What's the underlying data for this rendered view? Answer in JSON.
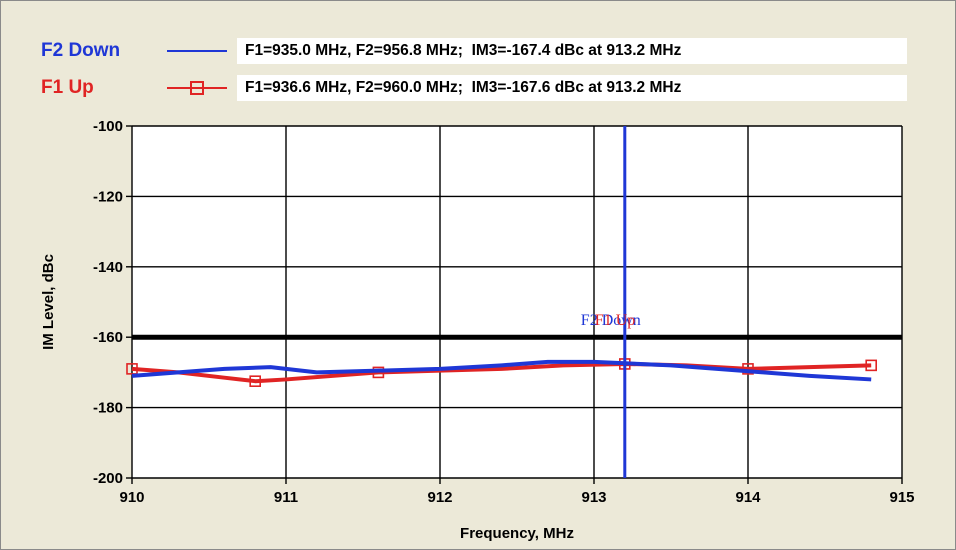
{
  "colors": {
    "f2_down": "#1f37d6",
    "f1_up": "#e02424",
    "limit": "#000000",
    "marker": "#1f37d6",
    "grid": "#000000",
    "panel_bg": "#ece9d8"
  },
  "legend": [
    {
      "name": "F2 Down",
      "text": "F1=935.0 MHz, F2=956.8 MHz;  IM3=-167.4 dBc at 913.2 MHz",
      "style": "line"
    },
    {
      "name": "F1 Up",
      "text": "F1=936.6 MHz, F2=960.0 MHz;  IM3=-167.6 dBc at 913.2 MHz",
      "style": "line-square"
    }
  ],
  "chart_data": {
    "type": "line",
    "title": "",
    "xlabel": "Frequency, MHz",
    "ylabel": "IM Level, dBc",
    "xlim": [
      910,
      915
    ],
    "ylim": [
      -200,
      -100
    ],
    "xticks": [
      "910",
      "911",
      "912",
      "913",
      "914",
      "915"
    ],
    "yticks": [
      "-100",
      "-120",
      "-140",
      "-160",
      "-180",
      "-200"
    ],
    "grid": true,
    "legend_position": "top",
    "limit_line": -160,
    "marker": {
      "x": 913.2,
      "label_back": "F2 Down",
      "label_front": "F1 Up"
    },
    "series": [
      {
        "name": "F2 Down",
        "x": [
          910.0,
          910.3,
          910.6,
          910.9,
          911.2,
          911.6,
          912.0,
          912.4,
          912.7,
          913.0,
          913.2,
          913.5,
          913.8,
          914.1,
          914.4,
          914.8
        ],
        "y": [
          -171,
          -170,
          -169,
          -168.5,
          -170,
          -169.5,
          -169,
          -168,
          -167,
          -167,
          -167.4,
          -168,
          -169,
          -170,
          -171,
          -172
        ]
      },
      {
        "name": "F1 Up",
        "x": [
          910.0,
          910.3,
          910.6,
          910.8,
          911.0,
          911.3,
          911.6,
          912.0,
          912.4,
          912.8,
          913.2,
          913.6,
          914.0,
          914.4,
          914.8
        ],
        "y": [
          -169,
          -170,
          -171.5,
          -172.5,
          -172,
          -171,
          -170,
          -169.5,
          -169,
          -168,
          -167.6,
          -168,
          -169,
          -168.5,
          -168
        ],
        "markers_at": [
          910.0,
          910.8,
          911.6,
          913.2,
          914.0,
          914.8
        ]
      }
    ]
  }
}
